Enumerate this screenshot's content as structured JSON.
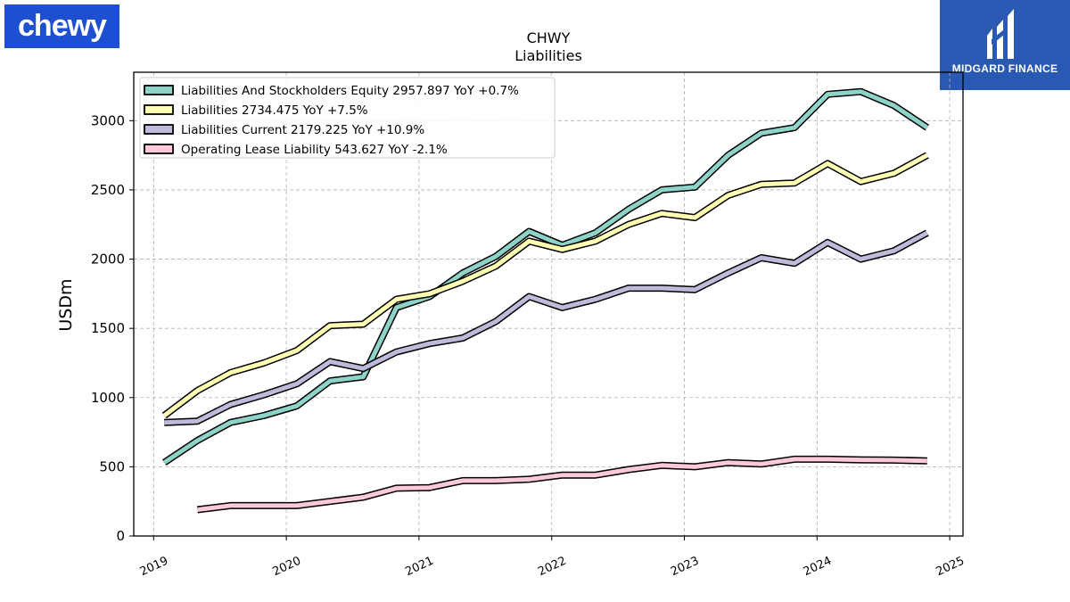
{
  "brand": {
    "logo_text": "chewy"
  },
  "partner": {
    "name": "MIDGARD FINANCE"
  },
  "colors": {
    "series": [
      "#8dd3c7",
      "#ffffb3",
      "#bebada",
      "#fbc8dc"
    ],
    "outline": "#000000",
    "grid": "#b0b0b0",
    "brand": "#1f4fd1",
    "partner": "#2a59b3"
  },
  "chart_data": {
    "type": "line",
    "title": "CHWY",
    "subtitle": "Liabilities",
    "ylabel": "USDm",
    "xlabel": "",
    "xlim": [
      2018.85,
      2025.1
    ],
    "ylim": [
      0,
      3350
    ],
    "grid": true,
    "legend_position": "top-left",
    "x_ticks": [
      2019,
      2020,
      2021,
      2022,
      2023,
      2024,
      2025
    ],
    "x_tick_labels": [
      "2019",
      "2020",
      "2021",
      "2022",
      "2023",
      "2024",
      "2025"
    ],
    "y_ticks": [
      0,
      500,
      1000,
      1500,
      2000,
      2500,
      3000
    ],
    "y_tick_labels": [
      "0",
      "500",
      "1000",
      "1500",
      "2000",
      "2500",
      "3000"
    ],
    "series": [
      {
        "name": "Liabilities And Stockholders Equity",
        "legend_label": "Liabilities And Stockholders Equity  2957.897 YoY +0.7%",
        "x": [
          2019.08,
          2019.33,
          2019.58,
          2019.83,
          2020.08,
          2020.33,
          2020.58,
          2020.83,
          2021.08,
          2021.33,
          2021.58,
          2021.83,
          2022.08,
          2022.33,
          2022.58,
          2022.83,
          2023.08,
          2023.33,
          2023.58,
          2023.83,
          2024.08,
          2024.33,
          2024.58,
          2024.83
        ],
        "values": [
          530,
          690,
          820,
          870,
          940,
          1120,
          1150,
          1650,
          1730,
          1900,
          2020,
          2200,
          2100,
          2190,
          2360,
          2500,
          2520,
          2750,
          2910,
          2950,
          3190,
          3210,
          3110,
          2950
        ]
      },
      {
        "name": "Liabilities",
        "legend_label": "Liabilities  2734.475 YoY +7.5%",
        "x": [
          2019.08,
          2019.33,
          2019.58,
          2019.83,
          2020.08,
          2020.33,
          2020.58,
          2020.83,
          2021.08,
          2021.33,
          2021.58,
          2021.83,
          2022.08,
          2022.33,
          2022.58,
          2022.83,
          2023.08,
          2023.33,
          2023.58,
          2023.83,
          2024.08,
          2024.33,
          2024.58,
          2024.83
        ],
        "values": [
          870,
          1050,
          1180,
          1250,
          1340,
          1520,
          1530,
          1710,
          1750,
          1840,
          1950,
          2130,
          2070,
          2130,
          2250,
          2330,
          2300,
          2460,
          2540,
          2550,
          2690,
          2560,
          2620,
          2750
        ]
      },
      {
        "name": "Liabilities Current",
        "legend_label": "Liabilities Current  2179.225 YoY +10.9%",
        "x": [
          2019.08,
          2019.33,
          2019.58,
          2019.83,
          2020.08,
          2020.33,
          2020.58,
          2020.83,
          2021.08,
          2021.33,
          2021.58,
          2021.83,
          2022.08,
          2022.33,
          2022.58,
          2022.83,
          2023.08,
          2023.33,
          2023.58,
          2023.83,
          2024.08,
          2024.33,
          2024.58,
          2024.83
        ],
        "values": [
          820,
          830,
          950,
          1020,
          1100,
          1260,
          1210,
          1330,
          1390,
          1430,
          1550,
          1730,
          1650,
          1710,
          1790,
          1790,
          1780,
          1900,
          2010,
          1970,
          2120,
          2000,
          2060,
          2190
        ]
      },
      {
        "name": "Operating Lease Liability",
        "legend_label": "Operating Lease Liability  543.627 YoY -2.1%",
        "x": [
          2019.33,
          2019.58,
          2019.83,
          2020.08,
          2020.33,
          2020.58,
          2020.83,
          2021.08,
          2021.33,
          2021.58,
          2021.83,
          2022.08,
          2022.33,
          2022.58,
          2022.83,
          2023.08,
          2023.33,
          2023.58,
          2023.83,
          2024.08,
          2024.33,
          2024.58,
          2024.83
        ],
        "values": [
          190,
          220,
          220,
          220,
          250,
          280,
          345,
          350,
          400,
          400,
          410,
          440,
          440,
          480,
          510,
          500,
          530,
          520,
          555,
          555,
          550,
          548,
          543
        ]
      }
    ]
  }
}
